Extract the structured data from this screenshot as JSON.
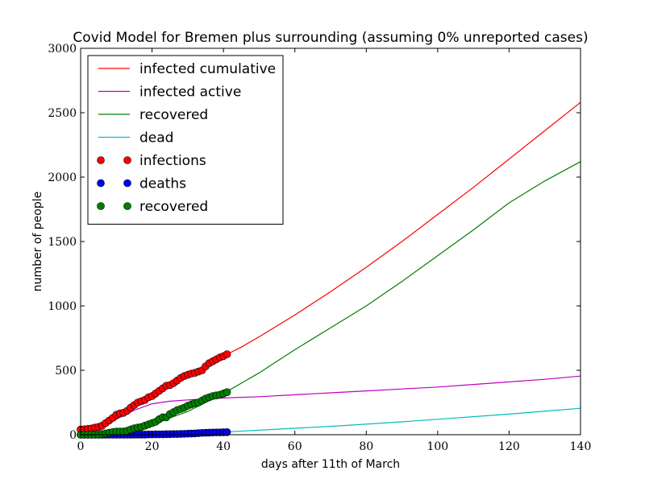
{
  "chart_data": {
    "type": "line",
    "title": "Covid Model for Bremen plus surrounding (assuming 0% unreported cases)",
    "xlabel": "days after 11th of March",
    "ylabel": "number of people",
    "xlim": [
      0,
      140
    ],
    "ylim": [
      0,
      3000
    ],
    "xticks": [
      0,
      20,
      40,
      60,
      80,
      100,
      120,
      140
    ],
    "yticks": [
      0,
      500,
      1000,
      1500,
      2000,
      2500,
      3000
    ],
    "grid": false,
    "legend_position": "top-left",
    "lines": [
      {
        "name": "infected cumulative",
        "color": "#ff0000",
        "x": [
          0,
          5,
          10,
          15,
          20,
          25,
          30,
          35,
          40,
          45,
          50,
          60,
          70,
          80,
          90,
          100,
          110,
          120,
          130,
          140
        ],
        "y": [
          40,
          60,
          150,
          230,
          310,
          380,
          450,
          530,
          610,
          680,
          760,
          930,
          1110,
          1300,
          1500,
          1710,
          1920,
          2140,
          2360,
          2580
        ]
      },
      {
        "name": "infected active",
        "color": "#bf00bf",
        "x": [
          0,
          5,
          10,
          15,
          20,
          25,
          30,
          40,
          50,
          60,
          70,
          80,
          90,
          100,
          110,
          120,
          130,
          140
        ],
        "y": [
          35,
          50,
          120,
          190,
          240,
          260,
          270,
          285,
          295,
          310,
          325,
          340,
          355,
          370,
          390,
          410,
          430,
          455
        ]
      },
      {
        "name": "recovered",
        "color": "#008000",
        "x": [
          0,
          5,
          10,
          15,
          20,
          25,
          30,
          35,
          40,
          45,
          50,
          60,
          70,
          80,
          90,
          100,
          110,
          120,
          130,
          140
        ],
        "y": [
          0,
          5,
          25,
          50,
          80,
          130,
          180,
          250,
          320,
          400,
          480,
          660,
          830,
          1000,
          1190,
          1390,
          1590,
          1800,
          1970,
          2120
        ]
      },
      {
        "name": "dead",
        "color": "#00bfbf",
        "x": [
          0,
          10,
          20,
          30,
          40,
          50,
          60,
          70,
          80,
          90,
          100,
          110,
          120,
          130,
          140
        ],
        "y": [
          0,
          1,
          5,
          10,
          20,
          35,
          50,
          65,
          82,
          100,
          120,
          140,
          160,
          183,
          205
        ]
      }
    ],
    "scatter": [
      {
        "name": "infections",
        "color": "#ff0000",
        "x": [
          0,
          1,
          2,
          3,
          4,
          5,
          6,
          7,
          8,
          9,
          10,
          11,
          12,
          13,
          14,
          15,
          16,
          17,
          18,
          19,
          20,
          21,
          22,
          23,
          24,
          25,
          26,
          27,
          28,
          29,
          30,
          31,
          32,
          33,
          34,
          35,
          36,
          37,
          38,
          39,
          40,
          41
        ],
        "y": [
          40,
          42,
          45,
          48,
          55,
          60,
          70,
          90,
          110,
          130,
          155,
          165,
          170,
          185,
          210,
          230,
          250,
          260,
          270,
          290,
          300,
          320,
          340,
          360,
          380,
          385,
          400,
          420,
          440,
          455,
          465,
          475,
          480,
          490,
          500,
          530,
          555,
          570,
          585,
          600,
          610,
          625
        ]
      },
      {
        "name": "deaths",
        "color": "#0000ff",
        "x": [
          0,
          1,
          2,
          3,
          4,
          5,
          6,
          7,
          8,
          9,
          10,
          11,
          12,
          13,
          14,
          15,
          16,
          17,
          18,
          19,
          20,
          21,
          22,
          23,
          24,
          25,
          26,
          27,
          28,
          29,
          30,
          31,
          32,
          33,
          34,
          35,
          36,
          37,
          38,
          39,
          40,
          41
        ],
        "y": [
          0,
          0,
          0,
          0,
          0,
          0,
          0,
          0,
          0,
          0,
          0,
          0,
          0,
          0,
          0,
          0,
          1,
          1,
          1,
          2,
          2,
          3,
          3,
          3,
          4,
          4,
          5,
          5,
          6,
          7,
          8,
          9,
          10,
          12,
          14,
          15,
          16,
          17,
          18,
          18,
          19,
          20
        ]
      },
      {
        "name": "recovered",
        "color": "#008000",
        "x": [
          0,
          1,
          2,
          3,
          4,
          5,
          6,
          7,
          8,
          9,
          10,
          11,
          12,
          13,
          14,
          15,
          16,
          17,
          18,
          19,
          20,
          21,
          22,
          23,
          24,
          25,
          26,
          27,
          28,
          29,
          30,
          31,
          32,
          33,
          34,
          35,
          36,
          37,
          38,
          39,
          40,
          41
        ],
        "y": [
          0,
          0,
          0,
          0,
          0,
          0,
          5,
          10,
          15,
          20,
          25,
          25,
          25,
          30,
          40,
          50,
          55,
          60,
          70,
          80,
          90,
          100,
          120,
          135,
          135,
          160,
          175,
          190,
          200,
          210,
          225,
          235,
          245,
          250,
          265,
          280,
          290,
          300,
          305,
          310,
          320,
          330
        ]
      }
    ],
    "legend": [
      {
        "label": "infected cumulative",
        "kind": "line",
        "color": "#ff0000"
      },
      {
        "label": "infected active",
        "kind": "line",
        "color": "#bf00bf"
      },
      {
        "label": "recovered",
        "kind": "line",
        "color": "#008000"
      },
      {
        "label": "dead",
        "kind": "line",
        "color": "#00bfbf"
      },
      {
        "label": "infections",
        "kind": "marker",
        "color": "#ff0000"
      },
      {
        "label": "deaths",
        "kind": "marker",
        "color": "#0000ff"
      },
      {
        "label": "recovered",
        "kind": "marker",
        "color": "#008000"
      }
    ]
  }
}
